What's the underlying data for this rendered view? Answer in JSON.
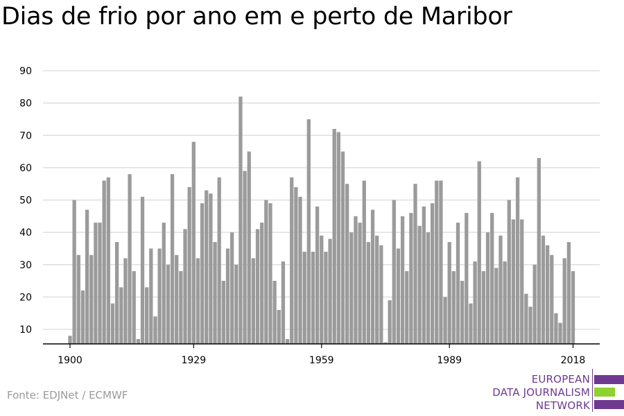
{
  "title": "Dias de frio por ano em e perto de Maribor",
  "source": "Fonte: EDJNet / ECMWF",
  "logo": {
    "line1": "EUROPEAN",
    "line2": "DATA JOURNALISM",
    "line3": "NETWORK",
    "colors": {
      "purple": "#6e3a8f",
      "green": "#8fd12e"
    }
  },
  "colors": {
    "bar": "#9b9b9b",
    "grid": "#d9d9d9",
    "axis": "#000000"
  },
  "chart_data": {
    "type": "bar",
    "title": "Dias de frio por ano em e perto de Maribor",
    "xlabel": "",
    "ylabel": "",
    "x_start": 1900,
    "x_end": 2018,
    "x_ticks": [
      1900,
      1929,
      1959,
      1989,
      2018
    ],
    "y_ticks": [
      10,
      20,
      30,
      40,
      50,
      60,
      70,
      80,
      90
    ],
    "ylim": [
      5.5,
      90
    ],
    "grid": true,
    "values": [
      8,
      50,
      33,
      22,
      47,
      33,
      43,
      43,
      56,
      57,
      18,
      37,
      23,
      32,
      58,
      28,
      7,
      51,
      23,
      35,
      14,
      35,
      43,
      30,
      58,
      33,
      28,
      41,
      54,
      68,
      32,
      49,
      53,
      52,
      37,
      57,
      25,
      35,
      40,
      30,
      82,
      59,
      65,
      32,
      41,
      43,
      50,
      49,
      25,
      16,
      31,
      7,
      57,
      54,
      51,
      34,
      75,
      34,
      48,
      39,
      34,
      38,
      72,
      71,
      65,
      55,
      40,
      45,
      43,
      56,
      37,
      47,
      39,
      36,
      6,
      19,
      50,
      35,
      45,
      28,
      46,
      55,
      42,
      48,
      40,
      49,
      56,
      56,
      20,
      37,
      28,
      43,
      25,
      46,
      18,
      31,
      62,
      28,
      40,
      46,
      29,
      39,
      31,
      50,
      44,
      57,
      44,
      21,
      17,
      30,
      63,
      39,
      36,
      33,
      15,
      12,
      32,
      37,
      28
    ]
  }
}
